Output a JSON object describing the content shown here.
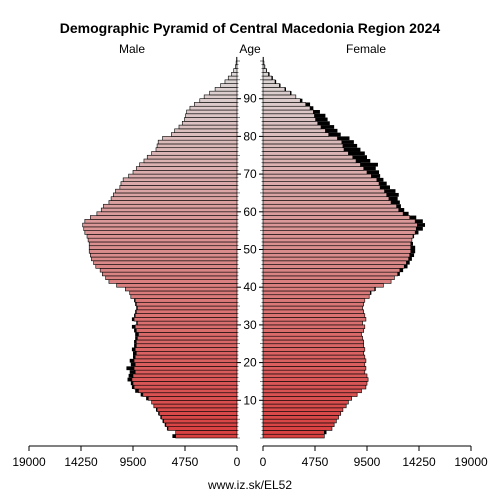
{
  "chart_data": {
    "type": "bar",
    "title": "Demographic Pyramid of Central Macedonia Region 2024",
    "male_label": "Male",
    "age_label": "Age",
    "female_label": "Female",
    "source": "www.iz.sk/EL52",
    "x_ticks_male": [
      "19000",
      "14250",
      "9500",
      "4750",
      "0"
    ],
    "x_ticks_female": [
      "0",
      "4750",
      "9500",
      "14250",
      "19000"
    ],
    "x_tick_values": [
      19000,
      14250,
      9500,
      4750,
      0
    ],
    "age_ticks": [
      10,
      20,
      30,
      40,
      50,
      60,
      70,
      80,
      90
    ],
    "xlim": [
      0,
      19000
    ],
    "age_range": [
      0,
      100
    ],
    "grid": false,
    "colors": {
      "bar_base": "#d94040",
      "bar_top": "#dcdcdc",
      "excess": "#000000",
      "outline": "#000000"
    },
    "series": [
      {
        "name": "Male",
        "ages": [
          0,
          1,
          2,
          3,
          4,
          5,
          6,
          7,
          8,
          9,
          10,
          11,
          12,
          13,
          14,
          15,
          16,
          17,
          18,
          19,
          20,
          21,
          22,
          23,
          24,
          25,
          26,
          27,
          28,
          29,
          30,
          31,
          32,
          33,
          34,
          35,
          36,
          37,
          38,
          39,
          40,
          41,
          42,
          43,
          44,
          45,
          46,
          47,
          48,
          49,
          50,
          51,
          52,
          53,
          54,
          55,
          56,
          57,
          58,
          59,
          60,
          61,
          62,
          63,
          64,
          65,
          66,
          67,
          68,
          69,
          70,
          71,
          72,
          73,
          74,
          75,
          76,
          77,
          78,
          79,
          80,
          81,
          82,
          83,
          84,
          85,
          86,
          87,
          88,
          89,
          90,
          91,
          92,
          93,
          94,
          95,
          96,
          97,
          98,
          99,
          100
        ],
        "values": [
          5900,
          5600,
          6400,
          6600,
          6800,
          7000,
          7200,
          7400,
          7600,
          7800,
          8300,
          8800,
          9300,
          9600,
          9700,
          10000,
          9900,
          9800,
          10100,
          9700,
          9800,
          9500,
          9500,
          9600,
          9400,
          9400,
          9300,
          9300,
          9400,
          9600,
          9200,
          9600,
          9400,
          9300,
          9200,
          9300,
          9400,
          9700,
          9800,
          10200,
          11000,
          11700,
          12000,
          12300,
          12500,
          12900,
          13100,
          13300,
          13400,
          13500,
          13500,
          13500,
          13600,
          13700,
          13900,
          14000,
          14100,
          13900,
          13400,
          12800,
          12400,
          12200,
          11700,
          11500,
          11300,
          11100,
          10700,
          10600,
          10400,
          9900,
          9500,
          9200,
          8900,
          8500,
          8200,
          7800,
          7400,
          7300,
          7200,
          6800,
          6000,
          5700,
          5300,
          5000,
          4800,
          4700,
          4600,
          4300,
          3900,
          3400,
          3000,
          2500,
          2000,
          1500,
          1100,
          800,
          500,
          300,
          150,
          80,
          40
        ]
      },
      {
        "name": "Female",
        "ages": [
          0,
          1,
          2,
          3,
          4,
          5,
          6,
          7,
          8,
          9,
          10,
          11,
          12,
          13,
          14,
          15,
          16,
          17,
          18,
          19,
          20,
          21,
          22,
          23,
          24,
          25,
          26,
          27,
          28,
          29,
          30,
          31,
          32,
          33,
          34,
          35,
          36,
          37,
          38,
          39,
          40,
          41,
          42,
          43,
          44,
          45,
          46,
          47,
          48,
          49,
          50,
          51,
          52,
          53,
          54,
          55,
          56,
          57,
          58,
          59,
          60,
          61,
          62,
          63,
          64,
          65,
          66,
          67,
          68,
          69,
          70,
          71,
          72,
          73,
          74,
          75,
          76,
          77,
          78,
          79,
          80,
          81,
          82,
          83,
          84,
          85,
          86,
          87,
          88,
          89,
          90,
          91,
          92,
          93,
          94,
          95,
          96,
          97,
          98,
          99,
          100
        ],
        "values": [
          5600,
          5800,
          6300,
          6500,
          6700,
          6900,
          7100,
          7300,
          7600,
          7800,
          8100,
          8600,
          9000,
          9400,
          9500,
          9600,
          9500,
          9300,
          9400,
          9300,
          9400,
          9300,
          9200,
          9300,
          9200,
          9200,
          9100,
          9000,
          9200,
          9300,
          9100,
          9400,
          9300,
          9200,
          9100,
          9200,
          9300,
          9700,
          9900,
          10300,
          11000,
          11700,
          12000,
          12500,
          12800,
          13200,
          13400,
          13600,
          13800,
          13900,
          13900,
          13700,
          13600,
          13800,
          14200,
          14600,
          14800,
          14600,
          14000,
          13300,
          12900,
          12600,
          12500,
          12300,
          12400,
          12100,
          11600,
          11300,
          11000,
          10700,
          10600,
          10300,
          10500,
          9800,
          9500,
          9300,
          8900,
          8600,
          8300,
          7900,
          7100,
          6800,
          6500,
          6100,
          5900,
          5700,
          5200,
          4600,
          4300,
          3600,
          3000,
          2600,
          2100,
          1600,
          1200,
          900,
          600,
          350,
          200,
          100,
          50
        ]
      }
    ]
  }
}
